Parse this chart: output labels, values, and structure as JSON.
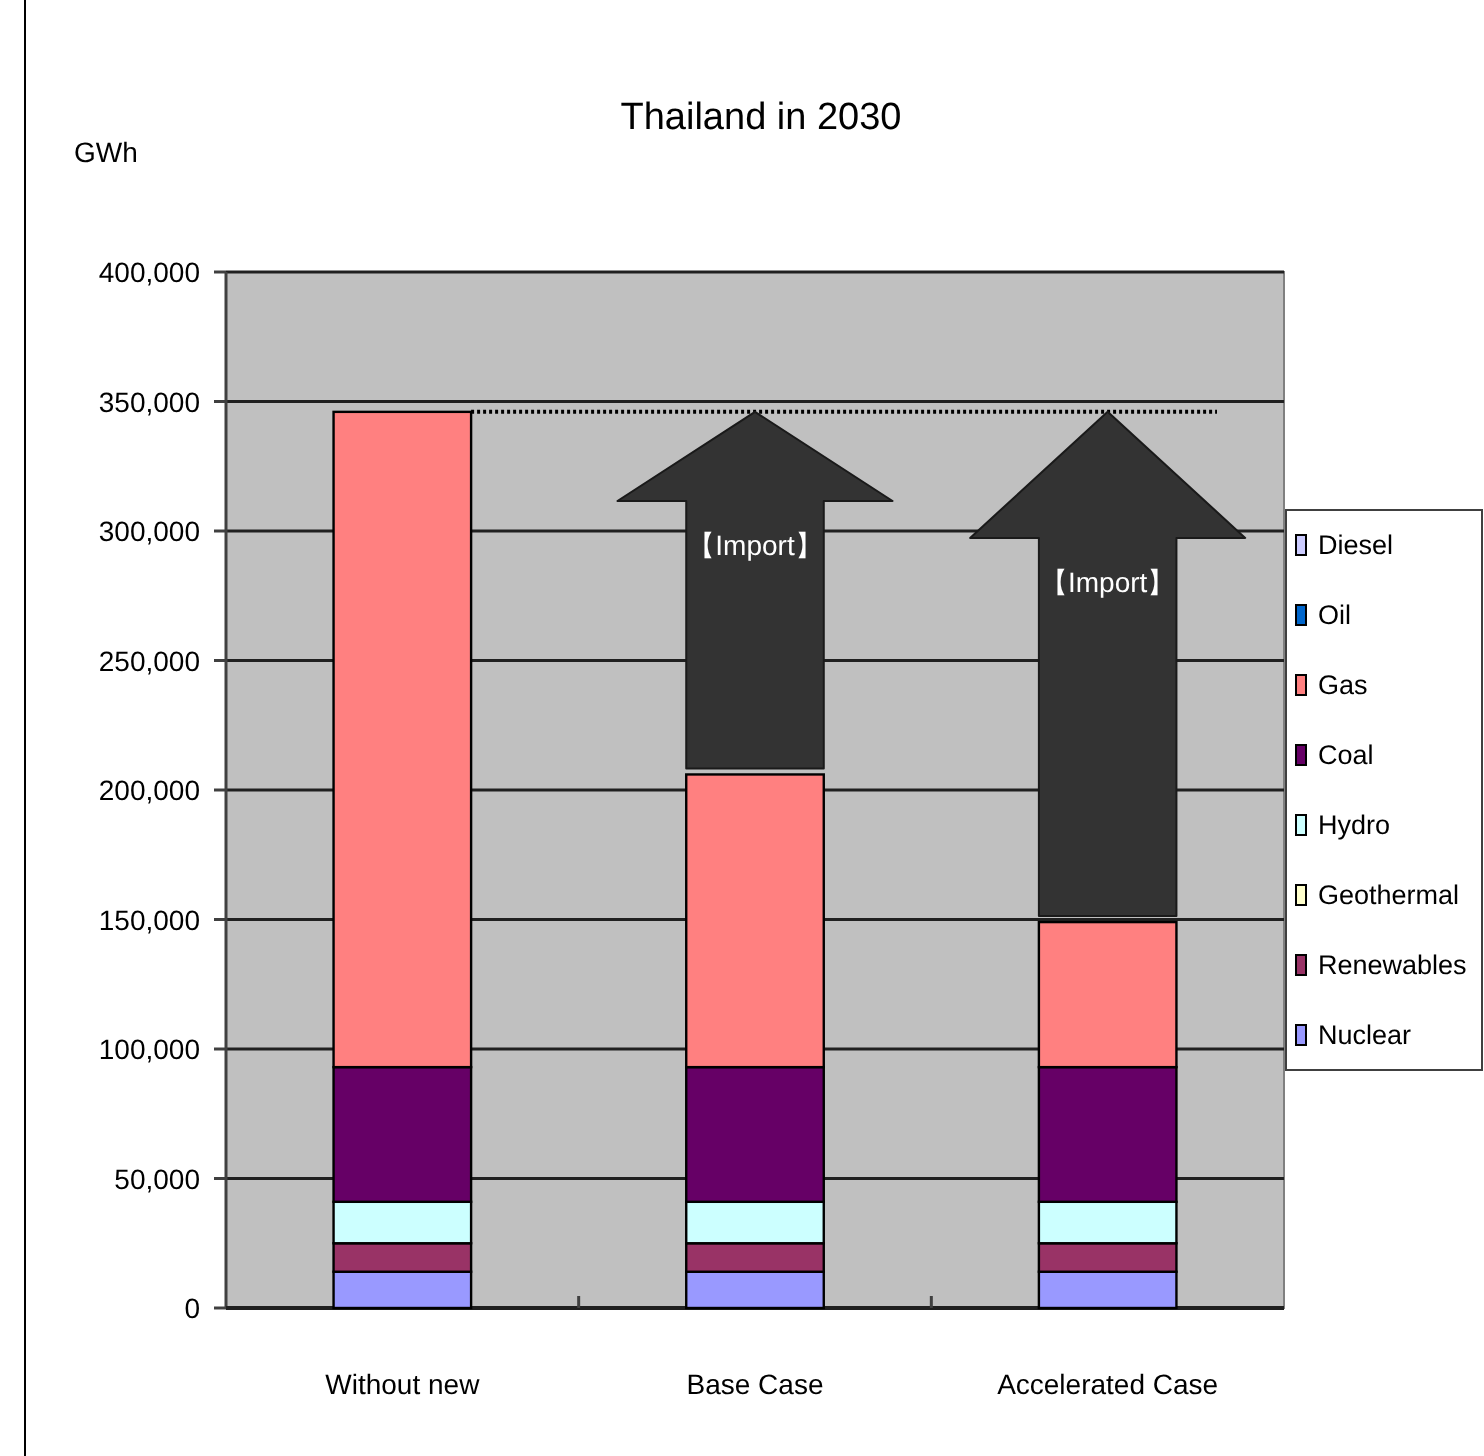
{
  "chart_data": {
    "type": "bar",
    "title": "Thailand in 2030",
    "ylabel": "GWh",
    "categories": [
      "Without new",
      "Base Case",
      "Accelerated Case"
    ],
    "series": [
      {
        "name": "Nuclear",
        "color": "#9999ff",
        "values": [
          14000,
          14000,
          14000
        ]
      },
      {
        "name": "Renewables",
        "color": "#993366",
        "values": [
          11000,
          11000,
          11000
        ]
      },
      {
        "name": "Geothermal",
        "color": "#ffffcc",
        "values": [
          0,
          0,
          0
        ]
      },
      {
        "name": "Hydro",
        "color": "#ccffff",
        "values": [
          16000,
          16000,
          16000
        ]
      },
      {
        "name": "Coal",
        "color": "#660066",
        "values": [
          52000,
          52000,
          52000
        ]
      },
      {
        "name": "Gas",
        "color": "#ff8080",
        "values": [
          253000,
          113000,
          56000
        ]
      },
      {
        "name": "Oil",
        "color": "#0066cc",
        "values": [
          0,
          0,
          0
        ]
      },
      {
        "name": "Diesel",
        "color": "#ccccff",
        "values": [
          0,
          0,
          0
        ]
      }
    ],
    "stacked": true,
    "ylim": [
      0,
      400000
    ],
    "yticks": [
      0,
      {
        "value": 50000,
        "label": "50,000"
      },
      {
        "value": 100000,
        "label": "100,000"
      },
      {
        "value": 150000,
        "label": "150,000"
      },
      {
        "value": 200000,
        "label": "200,000"
      },
      {
        "value": 250000,
        "label": "250,000"
      },
      {
        "value": 300000,
        "label": "300,000"
      },
      {
        "value": 350000,
        "label": "350,000"
      },
      {
        "value": 400000,
        "label": "400,000"
      }
    ],
    "grid": "y",
    "legend": "right",
    "ref_lines": [
      {
        "axis": "y",
        "value": 346000,
        "line_style": "dotted"
      }
    ],
    "annotations": [
      "【Import】",
      "【Import】"
    ]
  }
}
